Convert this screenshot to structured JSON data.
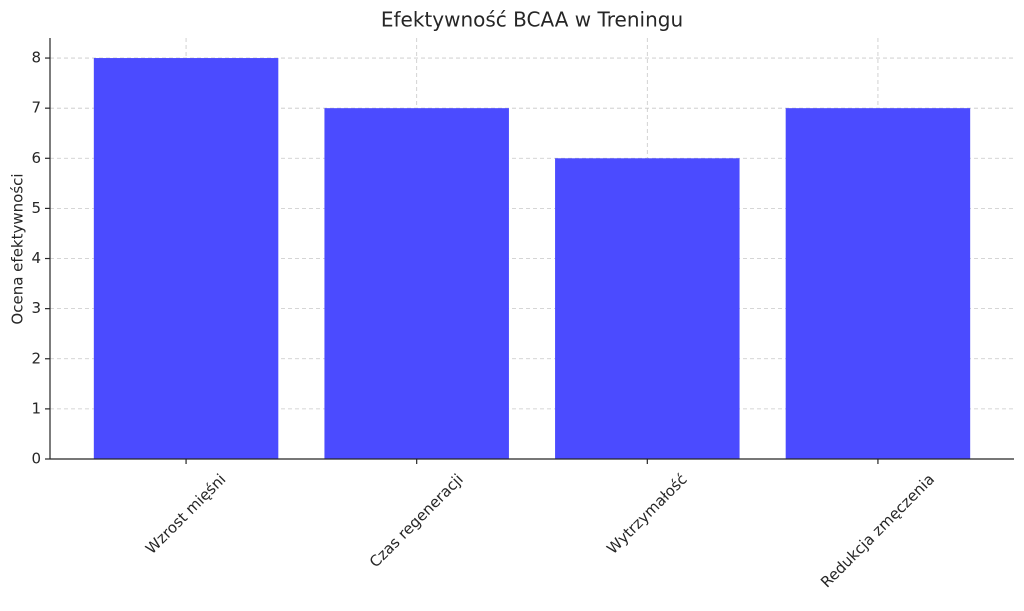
{
  "chart_data": {
    "type": "bar",
    "title": "Efektywność BCAA w Treningu",
    "y_label": "Ocena efektywności",
    "categories": [
      "Wzrost mięśni",
      "Czas regeneracji",
      "Wytrzymałość",
      "Redukcja zmęczenia"
    ],
    "values": [
      8,
      7,
      6,
      7
    ],
    "color": "#4b4bff",
    "ylim": [
      0,
      8.4
    ],
    "yticks": [
      0,
      1,
      2,
      3,
      4,
      5,
      6,
      7,
      8
    ],
    "grid": true
  }
}
